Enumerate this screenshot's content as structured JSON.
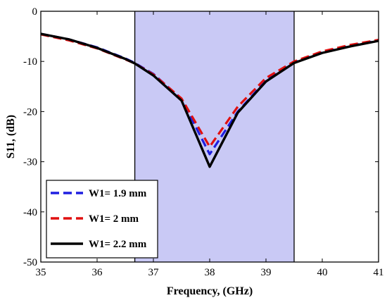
{
  "chart_data": {
    "type": "line",
    "title": "",
    "xlabel": "Frequency, (GHz)",
    "ylabel": "S11, (dB)",
    "xlim": [
      35,
      41
    ],
    "ylim": [
      -50,
      0
    ],
    "xticks": [
      35,
      36,
      37,
      38,
      39,
      40,
      41
    ],
    "yticks": [
      0,
      -10,
      -20,
      -30,
      -40,
      -50
    ],
    "grid": false,
    "legend_position": "bottom-left",
    "shaded_band": {
      "x_start": 36.67,
      "x_end": 39.5,
      "color": "#c9c9f5"
    },
    "series": [
      {
        "name": "W1= 1.9 mm",
        "color": "#1f1fe0",
        "dash": "dashed",
        "x": [
          35,
          35.5,
          36,
          36.5,
          36.67,
          37,
          37.5,
          38,
          38.5,
          39,
          39.5,
          40,
          40.5,
          41
        ],
        "y": [
          -4.5,
          -5.6,
          -7.2,
          -9.4,
          -10.3,
          -12.5,
          -17.5,
          -28.5,
          -20,
          -13.8,
          -10.2,
          -8.2,
          -6.9,
          -5.8
        ]
      },
      {
        "name": "W1= 2 mm",
        "color": "#e01010",
        "dash": "dashed",
        "x": [
          35,
          35.5,
          36,
          36.5,
          36.67,
          37,
          37.5,
          38,
          38.5,
          39,
          39.5,
          40,
          40.5,
          41
        ],
        "y": [
          -4.6,
          -5.8,
          -7.4,
          -9.6,
          -10.4,
          -12.6,
          -17.4,
          -27,
          -19,
          -13.3,
          -10,
          -8,
          -6.7,
          -5.7
        ]
      },
      {
        "name": "W1= 2.2 mm",
        "color": "#000000",
        "dash": "solid",
        "x": [
          35,
          35.5,
          36,
          36.5,
          36.67,
          37,
          37.5,
          38,
          38.5,
          39,
          39.5,
          40,
          40.5,
          41
        ],
        "y": [
          -4.5,
          -5.6,
          -7.3,
          -9.5,
          -10.4,
          -12.8,
          -17.8,
          -31,
          -20.2,
          -14,
          -10.3,
          -8.3,
          -7,
          -5.9
        ]
      }
    ]
  }
}
